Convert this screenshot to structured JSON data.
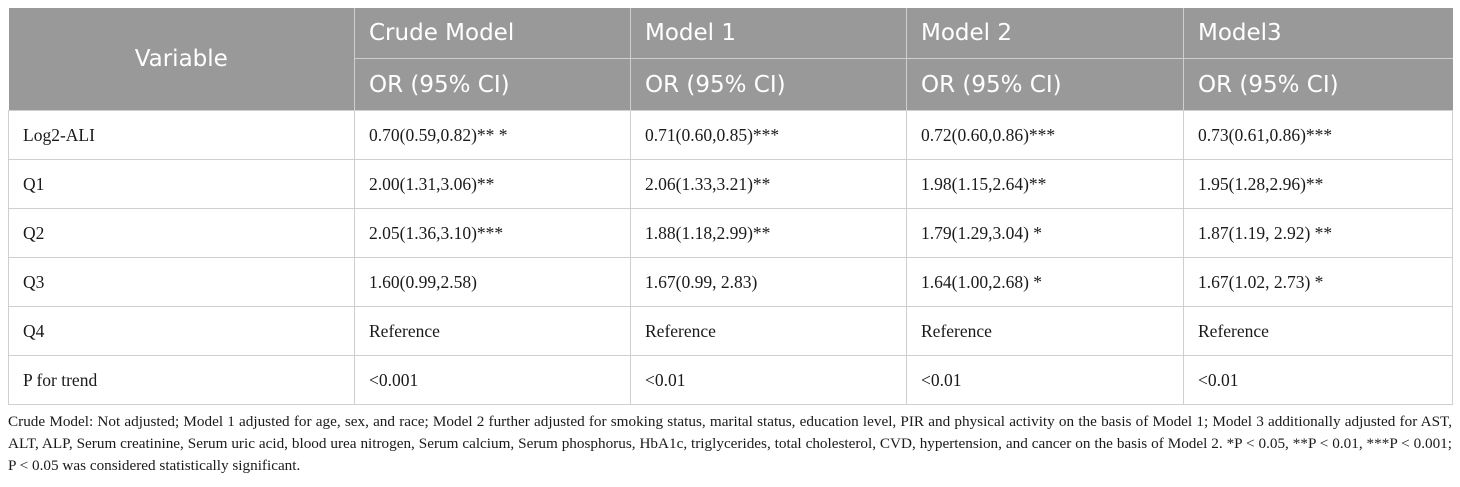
{
  "table": {
    "header": {
      "variable": "Variable",
      "models": [
        "Crude Model",
        "Model 1",
        "Model 2",
        "Model3"
      ],
      "sub": [
        "OR (95% CI)",
        "OR (95% CI)",
        "OR (95% CI)",
        "OR (95% CI)"
      ]
    },
    "rows": [
      {
        "label": "Log2-ALI",
        "cells": [
          "0.70(0.59,0.82)** *",
          "0.71(0.60,0.85)***",
          "0.72(0.60,0.86)***",
          "0.73(0.61,0.86)***"
        ]
      },
      {
        "label": "Q1",
        "cells": [
          "2.00(1.31,3.06)**",
          "2.06(1.33,3.21)**",
          "1.98(1.15,2.64)**",
          "1.95(1.28,2.96)**"
        ]
      },
      {
        "label": "Q2",
        "cells": [
          "2.05(1.36,3.10)***",
          "1.88(1.18,2.99)**",
          "1.79(1.29,3.04) *",
          "1.87(1.19, 2.92) **"
        ]
      },
      {
        "label": "Q3",
        "cells": [
          "1.60(0.99,2.58)",
          "1.67(0.99, 2.83)",
          "1.64(1.00,2.68) *",
          "1.67(1.02, 2.73) *"
        ]
      },
      {
        "label": "Q4",
        "cells": [
          "Reference",
          "Reference",
          "Reference",
          "Reference"
        ]
      },
      {
        "label": "P for trend",
        "cells": [
          "<0.001",
          "<0.01",
          "<0.01",
          "<0.01"
        ]
      }
    ]
  },
  "footnote": "Crude Model: Not adjusted; Model 1 adjusted for age, sex, and race; Model 2 further adjusted for smoking status, marital status, education level, PIR and physical activity on the basis of Model 1; Model 3 additionally adjusted for AST, ALT, ALP, Serum creatinine, Serum uric acid, blood urea nitrogen, Serum calcium, Serum phosphorus, HbA1c, triglycerides, total cholesterol, CVD, hypertension, and cancer on the basis of Model 2. *P < 0.05, **P < 0.01, ***P < 0.001; P < 0.05 was considered statistically significant."
}
